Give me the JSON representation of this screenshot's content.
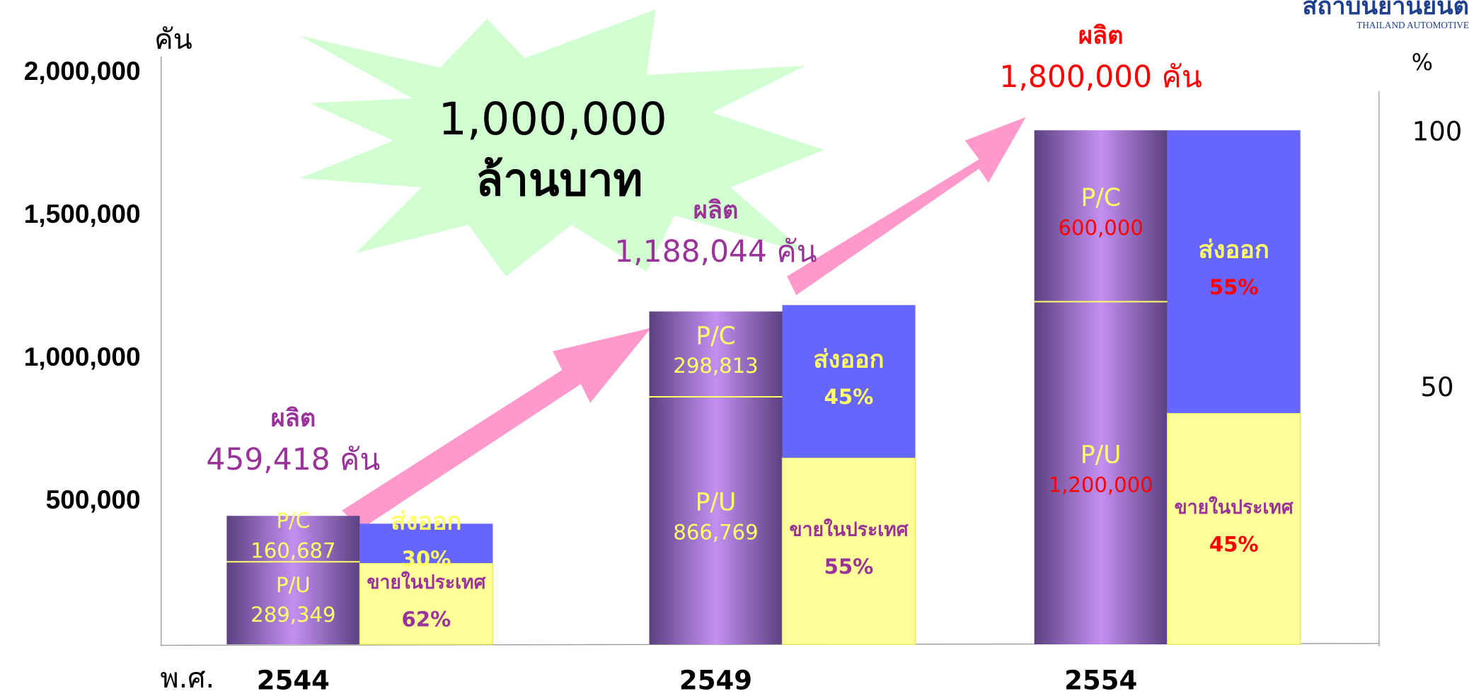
{
  "chart_data": {
    "type": "bar",
    "y_unit": "คัน",
    "y2_unit": "%",
    "x_label": "พ.ศ.",
    "annotation": [
      "1,000,000",
      "ล้านบาท"
    ],
    "logo": [
      "สถาบันยานยนต์",
      "THAILAND AUTOMOTIVE"
    ],
    "categories": [
      "2544",
      "2549",
      "2554"
    ],
    "total_label": "ผลิต",
    "totals": [
      459418,
      1188044,
      1800000
    ],
    "total_value_labels": [
      "459,418 คัน",
      "1,188,044 คัน",
      "1,800,000 คัน"
    ],
    "total_label_colors": [
      "#993399",
      "#993399",
      "#ff0000"
    ],
    "series": [
      {
        "name": "P/U",
        "color": "#c48ff2",
        "values": [
          289349,
          866769,
          1200000
        ],
        "value_labels": [
          "289,349",
          "866,769",
          "1,200,000"
        ]
      },
      {
        "name": "P/C",
        "color": "#c48ff2",
        "values": [
          160687,
          298813,
          600000
        ],
        "value_labels": [
          "160,687",
          "298,813",
          "600,000"
        ]
      }
    ],
    "share_series": [
      {
        "name": "ขายในประเทศ",
        "color": "#ffff99",
        "values": [
          62,
          55,
          45
        ],
        "value_labels": [
          "62%",
          "55%",
          "45%"
        ]
      },
      {
        "name": "ส่งออก",
        "color": "#6666ff",
        "values": [
          30,
          45,
          55
        ],
        "value_labels": [
          "30%",
          "45%",
          "55%"
        ]
      }
    ],
    "ylim": [
      0,
      2000000
    ],
    "yticks": [
      {
        "value": 500000,
        "label": "500,000"
      },
      {
        "value": 1000000,
        "label": "1,000,000"
      },
      {
        "value": 1500000,
        "label": "1,500,000"
      },
      {
        "value": 2000000,
        "label": "2,000,000"
      }
    ],
    "y2lim": [
      0,
      100
    ],
    "y2ticks": [
      50,
      100
    ]
  }
}
